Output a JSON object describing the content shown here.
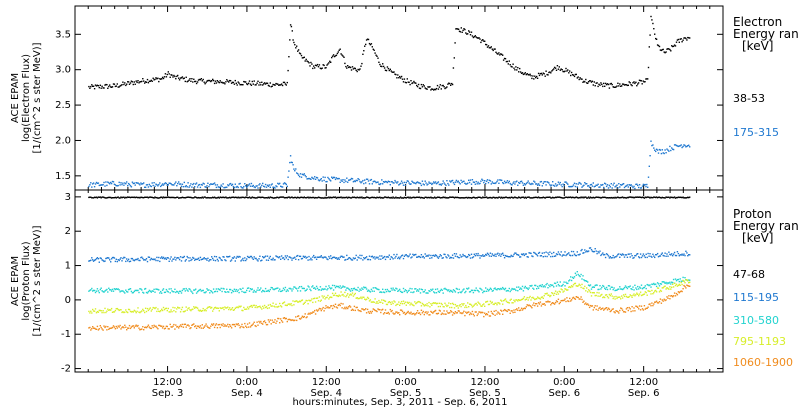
{
  "chart_data": [
    {
      "type": "scatter",
      "panel": "electron",
      "ylabel_lines": [
        "ACE EPAM",
        "log(Electron Flux)",
        "[1/(cm^2 s ster MeV)]"
      ],
      "legend_title_lines": [
        "Electron",
        "Energy ran"
      ],
      "legend_unit": "[keV]",
      "ylim": [
        1.3,
        3.9
      ],
      "yticks": [
        1.5,
        2.0,
        2.5,
        3.0,
        3.5
      ],
      "ytick_labels": [
        "1.5",
        "2.0",
        "2.5",
        "3.0",
        "3.5"
      ],
      "x_hours_range": [
        -2,
        96
      ],
      "series": [
        {
          "name": "38-53",
          "color": "#000000",
          "points": [
            [
              0,
              2.76
            ],
            [
              4,
              2.78
            ],
            [
              8,
              2.85
            ],
            [
              11,
              2.88
            ],
            [
              12,
              2.95
            ],
            [
              13,
              2.9
            ],
            [
              16,
              2.85
            ],
            [
              20,
              2.84
            ],
            [
              24,
              2.82
            ],
            [
              28,
              2.8
            ],
            [
              30,
              2.8
            ],
            [
              30.5,
              3.65
            ],
            [
              31,
              3.4
            ],
            [
              32,
              3.2
            ],
            [
              34,
              3.05
            ],
            [
              36,
              3.05
            ],
            [
              37,
              3.2
            ],
            [
              38,
              3.3
            ],
            [
              39,
              3.05
            ],
            [
              41,
              3.0
            ],
            [
              42,
              3.45
            ],
            [
              43,
              3.3
            ],
            [
              44,
              3.1
            ],
            [
              46,
              2.95
            ],
            [
              48,
              2.85
            ],
            [
              50,
              2.78
            ],
            [
              52,
              2.75
            ],
            [
              54,
              2.78
            ],
            [
              55,
              2.82
            ],
            [
              55.5,
              3.6
            ],
            [
              57,
              3.55
            ],
            [
              59,
              3.45
            ],
            [
              61,
              3.3
            ],
            [
              63,
              3.15
            ],
            [
              65,
              3.0
            ],
            [
              67,
              2.9
            ],
            [
              69,
              2.95
            ],
            [
              71,
              3.05
            ],
            [
              73,
              2.95
            ],
            [
              75,
              2.85
            ],
            [
              77,
              2.8
            ],
            [
              79,
              2.78
            ],
            [
              81,
              2.8
            ],
            [
              83,
              2.82
            ],
            [
              84.5,
              2.85
            ],
            [
              85,
              3.75
            ],
            [
              86,
              3.35
            ],
            [
              87,
              3.25
            ],
            [
              88,
              3.3
            ],
            [
              89,
              3.4
            ],
            [
              90,
              3.45
            ],
            [
              91,
              3.47
            ]
          ]
        },
        {
          "name": "175-315",
          "color": "#1f78d0",
          "points": [
            [
              0,
              1.38
            ],
            [
              4,
              1.4
            ],
            [
              8,
              1.38
            ],
            [
              12,
              1.4
            ],
            [
              16,
              1.38
            ],
            [
              20,
              1.38
            ],
            [
              24,
              1.37
            ],
            [
              28,
              1.37
            ],
            [
              30,
              1.38
            ],
            [
              30.5,
              1.78
            ],
            [
              31,
              1.6
            ],
            [
              32,
              1.52
            ],
            [
              34,
              1.48
            ],
            [
              36,
              1.46
            ],
            [
              40,
              1.44
            ],
            [
              44,
              1.42
            ],
            [
              48,
              1.41
            ],
            [
              52,
              1.4
            ],
            [
              56,
              1.42
            ],
            [
              60,
              1.43
            ],
            [
              64,
              1.41
            ],
            [
              68,
              1.4
            ],
            [
              72,
              1.39
            ],
            [
              76,
              1.38
            ],
            [
              80,
              1.37
            ],
            [
              84,
              1.36
            ],
            [
              84.5,
              1.37
            ],
            [
              85,
              1.98
            ],
            [
              86,
              1.85
            ],
            [
              87,
              1.86
            ],
            [
              88,
              1.9
            ],
            [
              89,
              1.93
            ],
            [
              90,
              1.95
            ],
            [
              91,
              1.94
            ]
          ]
        }
      ]
    },
    {
      "type": "scatter",
      "panel": "proton",
      "ylabel_lines": [
        "ACE EPAM",
        "log(Proton Flux)",
        "[1/(cm^2 s ster MeV)]"
      ],
      "legend_title_lines": [
        "Proton",
        "Energy ran"
      ],
      "legend_unit": "[keV]",
      "ylim": [
        -2.1,
        3.2
      ],
      "yticks": [
        -2,
        -1,
        0,
        1,
        2,
        3
      ],
      "ytick_labels": [
        "-2",
        "-1",
        "0",
        "1",
        "2",
        "3"
      ],
      "x_hours_range": [
        -2,
        96
      ],
      "series": [
        {
          "name": "47-68",
          "color": "#000000",
          "points": [
            [
              0,
              3.0
            ],
            [
              10,
              3.0
            ],
            [
              20,
              3.0
            ],
            [
              30,
              3.0
            ],
            [
              40,
              3.0
            ],
            [
              50,
              3.0
            ],
            [
              60,
              3.0
            ],
            [
              70,
              3.0
            ],
            [
              80,
              3.0
            ],
            [
              91,
              3.0
            ]
          ]
        },
        {
          "name": "115-195",
          "color": "#1f78d0",
          "points": [
            [
              0,
              1.18
            ],
            [
              8,
              1.2
            ],
            [
              16,
              1.22
            ],
            [
              24,
              1.22
            ],
            [
              32,
              1.24
            ],
            [
              40,
              1.25
            ],
            [
              48,
              1.28
            ],
            [
              56,
              1.3
            ],
            [
              64,
              1.32
            ],
            [
              70,
              1.35
            ],
            [
              74,
              1.38
            ],
            [
              76,
              1.5
            ],
            [
              78,
              1.3
            ],
            [
              84,
              1.3
            ],
            [
              88,
              1.35
            ],
            [
              91,
              1.38
            ]
          ]
        },
        {
          "name": "310-580",
          "color": "#22d3cf",
          "points": [
            [
              0,
              0.3
            ],
            [
              8,
              0.28
            ],
            [
              16,
              0.28
            ],
            [
              24,
              0.3
            ],
            [
              30,
              0.32
            ],
            [
              36,
              0.38
            ],
            [
              44,
              0.3
            ],
            [
              52,
              0.28
            ],
            [
              60,
              0.3
            ],
            [
              66,
              0.35
            ],
            [
              70,
              0.45
            ],
            [
              72,
              0.5
            ],
            [
              74,
              0.8
            ],
            [
              76,
              0.4
            ],
            [
              80,
              0.35
            ],
            [
              84,
              0.4
            ],
            [
              88,
              0.55
            ],
            [
              91,
              0.65
            ]
          ]
        },
        {
          "name": "795-1193",
          "color": "#d7ee2a",
          "points": [
            [
              0,
              -0.3
            ],
            [
              8,
              -0.28
            ],
            [
              16,
              -0.25
            ],
            [
              24,
              -0.22
            ],
            [
              30,
              -0.1
            ],
            [
              34,
              0.0
            ],
            [
              38,
              0.2
            ],
            [
              40,
              0.15
            ],
            [
              44,
              -0.05
            ],
            [
              50,
              -0.1
            ],
            [
              56,
              -0.15
            ],
            [
              60,
              -0.1
            ],
            [
              64,
              0.0
            ],
            [
              68,
              0.1
            ],
            [
              72,
              0.3
            ],
            [
              74,
              0.5
            ],
            [
              76,
              0.2
            ],
            [
              80,
              0.1
            ],
            [
              84,
              0.2
            ],
            [
              88,
              0.4
            ],
            [
              91,
              0.6
            ]
          ]
        },
        {
          "name": "1060-1900",
          "color": "#f08c1e",
          "points": [
            [
              0,
              -0.8
            ],
            [
              8,
              -0.78
            ],
            [
              16,
              -0.75
            ],
            [
              24,
              -0.72
            ],
            [
              28,
              -0.6
            ],
            [
              32,
              -0.5
            ],
            [
              36,
              -0.2
            ],
            [
              38,
              -0.15
            ],
            [
              42,
              -0.3
            ],
            [
              48,
              -0.35
            ],
            [
              54,
              -0.35
            ],
            [
              60,
              -0.4
            ],
            [
              64,
              -0.3
            ],
            [
              68,
              -0.1
            ],
            [
              72,
              0.0
            ],
            [
              74,
              0.1
            ],
            [
              76,
              -0.2
            ],
            [
              80,
              -0.3
            ],
            [
              84,
              -0.2
            ],
            [
              88,
              0.1
            ],
            [
              91,
              0.5
            ]
          ]
        }
      ]
    }
  ],
  "x_axis": {
    "tick_times": [
      "12:00",
      "0:00",
      "12:00",
      "0:00",
      "12:00",
      "0:00",
      "12:00"
    ],
    "tick_dates": [
      "Sep. 3",
      "Sep. 4",
      "Sep. 4",
      "Sep. 5",
      "Sep. 5",
      "Sep. 6",
      "Sep. 6"
    ],
    "tick_hours": [
      12,
      24,
      36,
      48,
      60,
      72,
      84
    ],
    "label": "hours:minutes, Sep.  3, 2011 - Sep.  6, 2011"
  }
}
